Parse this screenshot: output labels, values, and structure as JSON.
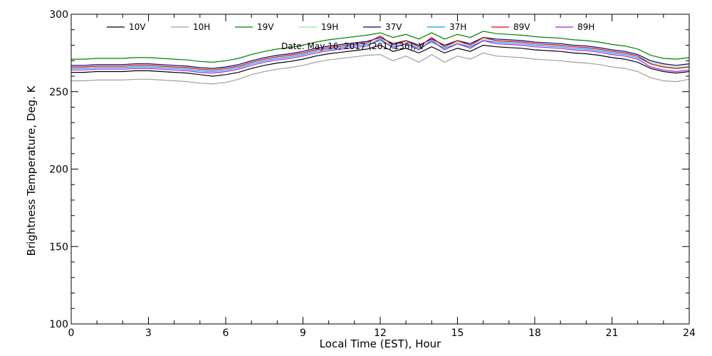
{
  "chart_data": {
    "type": "line",
    "title": "",
    "annotation": "Date: May 16, 2017 (2017136), V",
    "xlabel": "Local Time (EST), Hour",
    "ylabel": "Brightness Temperature, Deg. K",
    "xlim": [
      0,
      24
    ],
    "ylim": [
      100,
      300
    ],
    "xticks": [
      0,
      3,
      6,
      9,
      12,
      15,
      18,
      21,
      24
    ],
    "yticks": [
      100,
      150,
      200,
      250,
      300
    ],
    "grid": false,
    "legend_position": "top",
    "x": [
      0,
      0.5,
      1,
      1.5,
      2,
      2.5,
      3,
      3.5,
      4,
      4.5,
      5,
      5.5,
      6,
      6.5,
      7,
      7.5,
      8,
      8.5,
      9,
      9.5,
      10,
      10.5,
      11,
      11.5,
      12,
      12.5,
      13,
      13.5,
      14,
      14.5,
      15,
      15.5,
      16,
      16.5,
      17,
      17.5,
      18,
      18.5,
      19,
      19.5,
      20,
      20.5,
      21,
      21.5,
      22,
      22.5,
      23,
      23.5,
      24
    ],
    "series": [
      {
        "name": "10V",
        "color": "#000000",
        "values": [
          262.5,
          262.5,
          263,
          263,
          263,
          263.5,
          263.5,
          263,
          262.5,
          262,
          261,
          260,
          261,
          262.5,
          265,
          267,
          268.5,
          269.5,
          271,
          273,
          274.5,
          275.5,
          276.5,
          277.5,
          280,
          276,
          278,
          275,
          279,
          275,
          278,
          276,
          280,
          279,
          278.5,
          278,
          277,
          276.5,
          276,
          275,
          274.5,
          273.5,
          272,
          271,
          269,
          265,
          263,
          262,
          263
        ]
      },
      {
        "name": "10H",
        "color": "#a0a0a0",
        "values": [
          257,
          257,
          257.5,
          257.5,
          257.5,
          258,
          258,
          257.5,
          257,
          256.5,
          255.5,
          255,
          256,
          258,
          261,
          263,
          264.5,
          265.5,
          267,
          269,
          270.5,
          271.5,
          272.5,
          273.5,
          274,
          270,
          273,
          269,
          274,
          269,
          273,
          271,
          275,
          273,
          272.5,
          272,
          271,
          270.5,
          270,
          269,
          268.5,
          267.5,
          266,
          265,
          263,
          259,
          257,
          256.5,
          258
        ]
      },
      {
        "name": "19V",
        "color": "#008000",
        "values": [
          271,
          271,
          271.5,
          271.5,
          271.5,
          272,
          272,
          271.5,
          271,
          270.5,
          269.5,
          269,
          270,
          271.5,
          274,
          276,
          277.5,
          278.5,
          280,
          282,
          283.5,
          284.5,
          285.5,
          286.5,
          288,
          285,
          287,
          284,
          288,
          284,
          287,
          285,
          289,
          287.5,
          287,
          286.5,
          285.5,
          285,
          284.5,
          283.5,
          283,
          282,
          280.5,
          279.5,
          277.5,
          273.5,
          271.5,
          271,
          272
        ]
      },
      {
        "name": "19H",
        "color": "#90ee90",
        "values": [
          266,
          266,
          266.5,
          266.5,
          266.5,
          267,
          267,
          266.5,
          266,
          265.5,
          264.5,
          264,
          265,
          266.5,
          269,
          271,
          272.5,
          273.5,
          275,
          277,
          278.5,
          279.5,
          280.5,
          281.5,
          284,
          280,
          282,
          279,
          283,
          279,
          282,
          280,
          284,
          283,
          282.5,
          282,
          281,
          280.5,
          280,
          279,
          278.5,
          277.5,
          276,
          275,
          273,
          269,
          267,
          266,
          267
        ]
      },
      {
        "name": "37V",
        "color": "#000080",
        "values": [
          267,
          267,
          267.5,
          267.5,
          267.5,
          268,
          268,
          267.5,
          267,
          266.5,
          265.5,
          265,
          266,
          267.5,
          270,
          272,
          273.5,
          274.5,
          276,
          278,
          279.5,
          280.5,
          281.5,
          282.5,
          285,
          281,
          283,
          280,
          284,
          280,
          283,
          281,
          285,
          284,
          283.5,
          283,
          282,
          281.5,
          281,
          280,
          279.5,
          278.5,
          277,
          276,
          274,
          270,
          268,
          267,
          268
        ]
      },
      {
        "name": "37H",
        "color": "#00a0e0",
        "values": [
          265,
          265,
          265.5,
          265.5,
          265.5,
          266,
          266,
          265.5,
          265,
          264.5,
          263.5,
          263,
          264,
          265.5,
          268,
          270,
          271.5,
          272.5,
          274,
          276,
          277.5,
          278.5,
          279.5,
          280.5,
          283,
          279,
          281,
          278,
          282,
          278,
          281,
          279,
          283,
          282,
          281.5,
          281,
          280,
          279.5,
          279,
          278,
          277.5,
          276.5,
          275,
          274,
          272,
          268,
          266,
          265,
          266
        ]
      },
      {
        "name": "89V",
        "color": "#e00000",
        "values": [
          266,
          266,
          266.5,
          266.5,
          266.5,
          267,
          267,
          266.5,
          266,
          265.5,
          264.5,
          264,
          265,
          266.5,
          269,
          271,
          272.5,
          273.5,
          275,
          277,
          278.5,
          279.5,
          280.5,
          281.5,
          286,
          280,
          283,
          279,
          285,
          279,
          283,
          280,
          285,
          283,
          282.5,
          282,
          281,
          280.5,
          280,
          279,
          278.5,
          277.5,
          276,
          275,
          273,
          268,
          266,
          265,
          266
        ]
      },
      {
        "name": "89H",
        "color": "#a020f0",
        "values": [
          264,
          264,
          264.5,
          264.5,
          264.5,
          265,
          265,
          264.5,
          264,
          263.5,
          262.5,
          262,
          263,
          264.5,
          267,
          269,
          270.5,
          271.5,
          273,
          275,
          276.5,
          277.5,
          278.5,
          279.5,
          284,
          278,
          281,
          277,
          283,
          277,
          281,
          278,
          283,
          281,
          280.5,
          280,
          279,
          278.5,
          278,
          277,
          276.5,
          275.5,
          274,
          273,
          271,
          266,
          264,
          263,
          264
        ]
      }
    ]
  }
}
